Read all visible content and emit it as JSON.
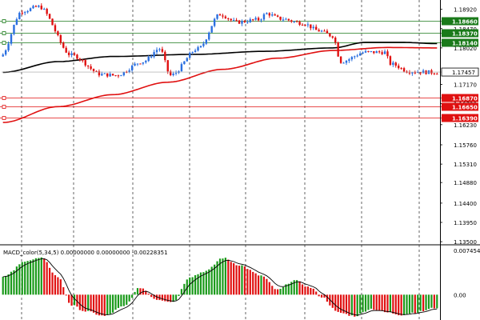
{
  "chart_data": [
    {
      "type": "candlestick",
      "symbol": "",
      "title": "",
      "ylim": [
        1.13465,
        1.191
      ],
      "price_ticks": [
        "1.18920",
        "1.18470",
        "1.18020",
        "1.17170",
        "1.16720",
        "1.16230",
        "1.15760",
        "1.15310",
        "1.14880",
        "1.14400",
        "1.13950",
        "1.13500"
      ],
      "price_tick_values": [
        1.1892,
        1.1847,
        1.1802,
        1.1717,
        1.1672,
        1.1623,
        1.1576,
        1.1531,
        1.1488,
        1.144,
        1.1395,
        1.135
      ],
      "current_price": "1.17457",
      "current_price_value": 1.17457,
      "levels": [
        {
          "label": "1.18660",
          "value": 1.1866,
          "color": "#1a7a1a"
        },
        {
          "label": "1.18370",
          "value": 1.1837,
          "color": "#1a7a1a"
        },
        {
          "label": "1.18140",
          "value": 1.1814,
          "color": "#1a7a1a"
        },
        {
          "label": "1.16870",
          "value": 1.1687,
          "color": "#e01010"
        },
        {
          "label": "1.16650",
          "value": 1.1665,
          "color": "#e01010"
        },
        {
          "label": "1.16390",
          "value": 1.1639,
          "color": "#e01010"
        }
      ],
      "moving_averages": [
        {
          "color": "#000000",
          "anchors": [
            [
              0,
              1.1745
            ],
            [
              20,
              1.177
            ],
            [
              40,
              1.1782
            ],
            [
              70,
              1.1787
            ],
            [
              95,
              1.1794
            ],
            [
              120,
              1.1802
            ],
            [
              132,
              1.1815
            ],
            [
              145,
              1.1815
            ],
            [
              158,
              1.1812
            ]
          ]
        },
        {
          "color": "#e01010",
          "anchors": [
            [
              0,
              1.1628
            ],
            [
              20,
              1.1665
            ],
            [
              40,
              1.1693
            ],
            [
              60,
              1.1722
            ],
            [
              80,
              1.1752
            ],
            [
              100,
              1.1778
            ],
            [
              120,
              1.1796
            ],
            [
              140,
              1.1803
            ],
            [
              158,
              1.1802
            ]
          ]
        }
      ],
      "candles": {
        "anchors": [
          [
            0,
            1.1782
          ],
          [
            8,
            1.1888
          ],
          [
            14,
            1.1898
          ],
          [
            26,
            1.1785
          ],
          [
            37,
            1.174
          ],
          [
            42,
            1.1738
          ],
          [
            52,
            1.177
          ],
          [
            58,
            1.18
          ],
          [
            62,
            1.1738
          ],
          [
            72,
            1.18
          ],
          [
            80,
            1.188
          ],
          [
            86,
            1.1862
          ],
          [
            94,
            1.1868
          ],
          [
            97,
            1.1882
          ],
          [
            102,
            1.187
          ],
          [
            110,
            1.186
          ],
          [
            116,
            1.1842
          ],
          [
            121,
            1.183
          ],
          [
            124,
            1.177
          ],
          [
            133,
            1.1792
          ],
          [
            140,
            1.1792
          ],
          [
            142,
            1.1765
          ],
          [
            149,
            1.1747
          ],
          [
            158,
            1.1745
          ]
        ],
        "count": 159,
        "bull_color": "#2a6fe0",
        "bear_color": "#e01010"
      }
    },
    {
      "type": "macd",
      "label": "MACD_color(5,34,5) 0.00000000 0.00000000 -0.00228351",
      "ylim": [
        -0.004,
        0.008
      ],
      "ticks": [
        "0.0074547",
        "0.00"
      ],
      "tick_values": [
        0.0074547,
        0.0
      ],
      "histogram": {
        "anchors": [
          [
            0,
            0.003
          ],
          [
            9,
            0.0058
          ],
          [
            14,
            0.0062
          ],
          [
            20,
            0.003
          ],
          [
            25,
            -0.0018
          ],
          [
            30,
            -0.0028
          ],
          [
            37,
            -0.0036
          ],
          [
            44,
            -0.002
          ],
          [
            50,
            0.0012
          ],
          [
            56,
            -0.0008
          ],
          [
            62,
            -0.0012
          ],
          [
            68,
            0.003
          ],
          [
            74,
            0.004
          ],
          [
            80,
            0.0062
          ],
          [
            86,
            0.005
          ],
          [
            94,
            0.0032
          ],
          [
            100,
            0.0008
          ],
          [
            106,
            0.0024
          ],
          [
            112,
            0.0012
          ],
          [
            116,
            -0.0004
          ],
          [
            122,
            -0.003
          ],
          [
            128,
            -0.0036
          ],
          [
            134,
            -0.0024
          ],
          [
            140,
            -0.003
          ],
          [
            145,
            -0.0034
          ],
          [
            150,
            -0.003
          ],
          [
            158,
            -0.0022
          ]
        ],
        "up_color": "#1a9a1a",
        "down_color": "#e01010"
      },
      "signal_color": "#000000"
    }
  ],
  "grid": {
    "vertical": true,
    "horizontal": false
  }
}
